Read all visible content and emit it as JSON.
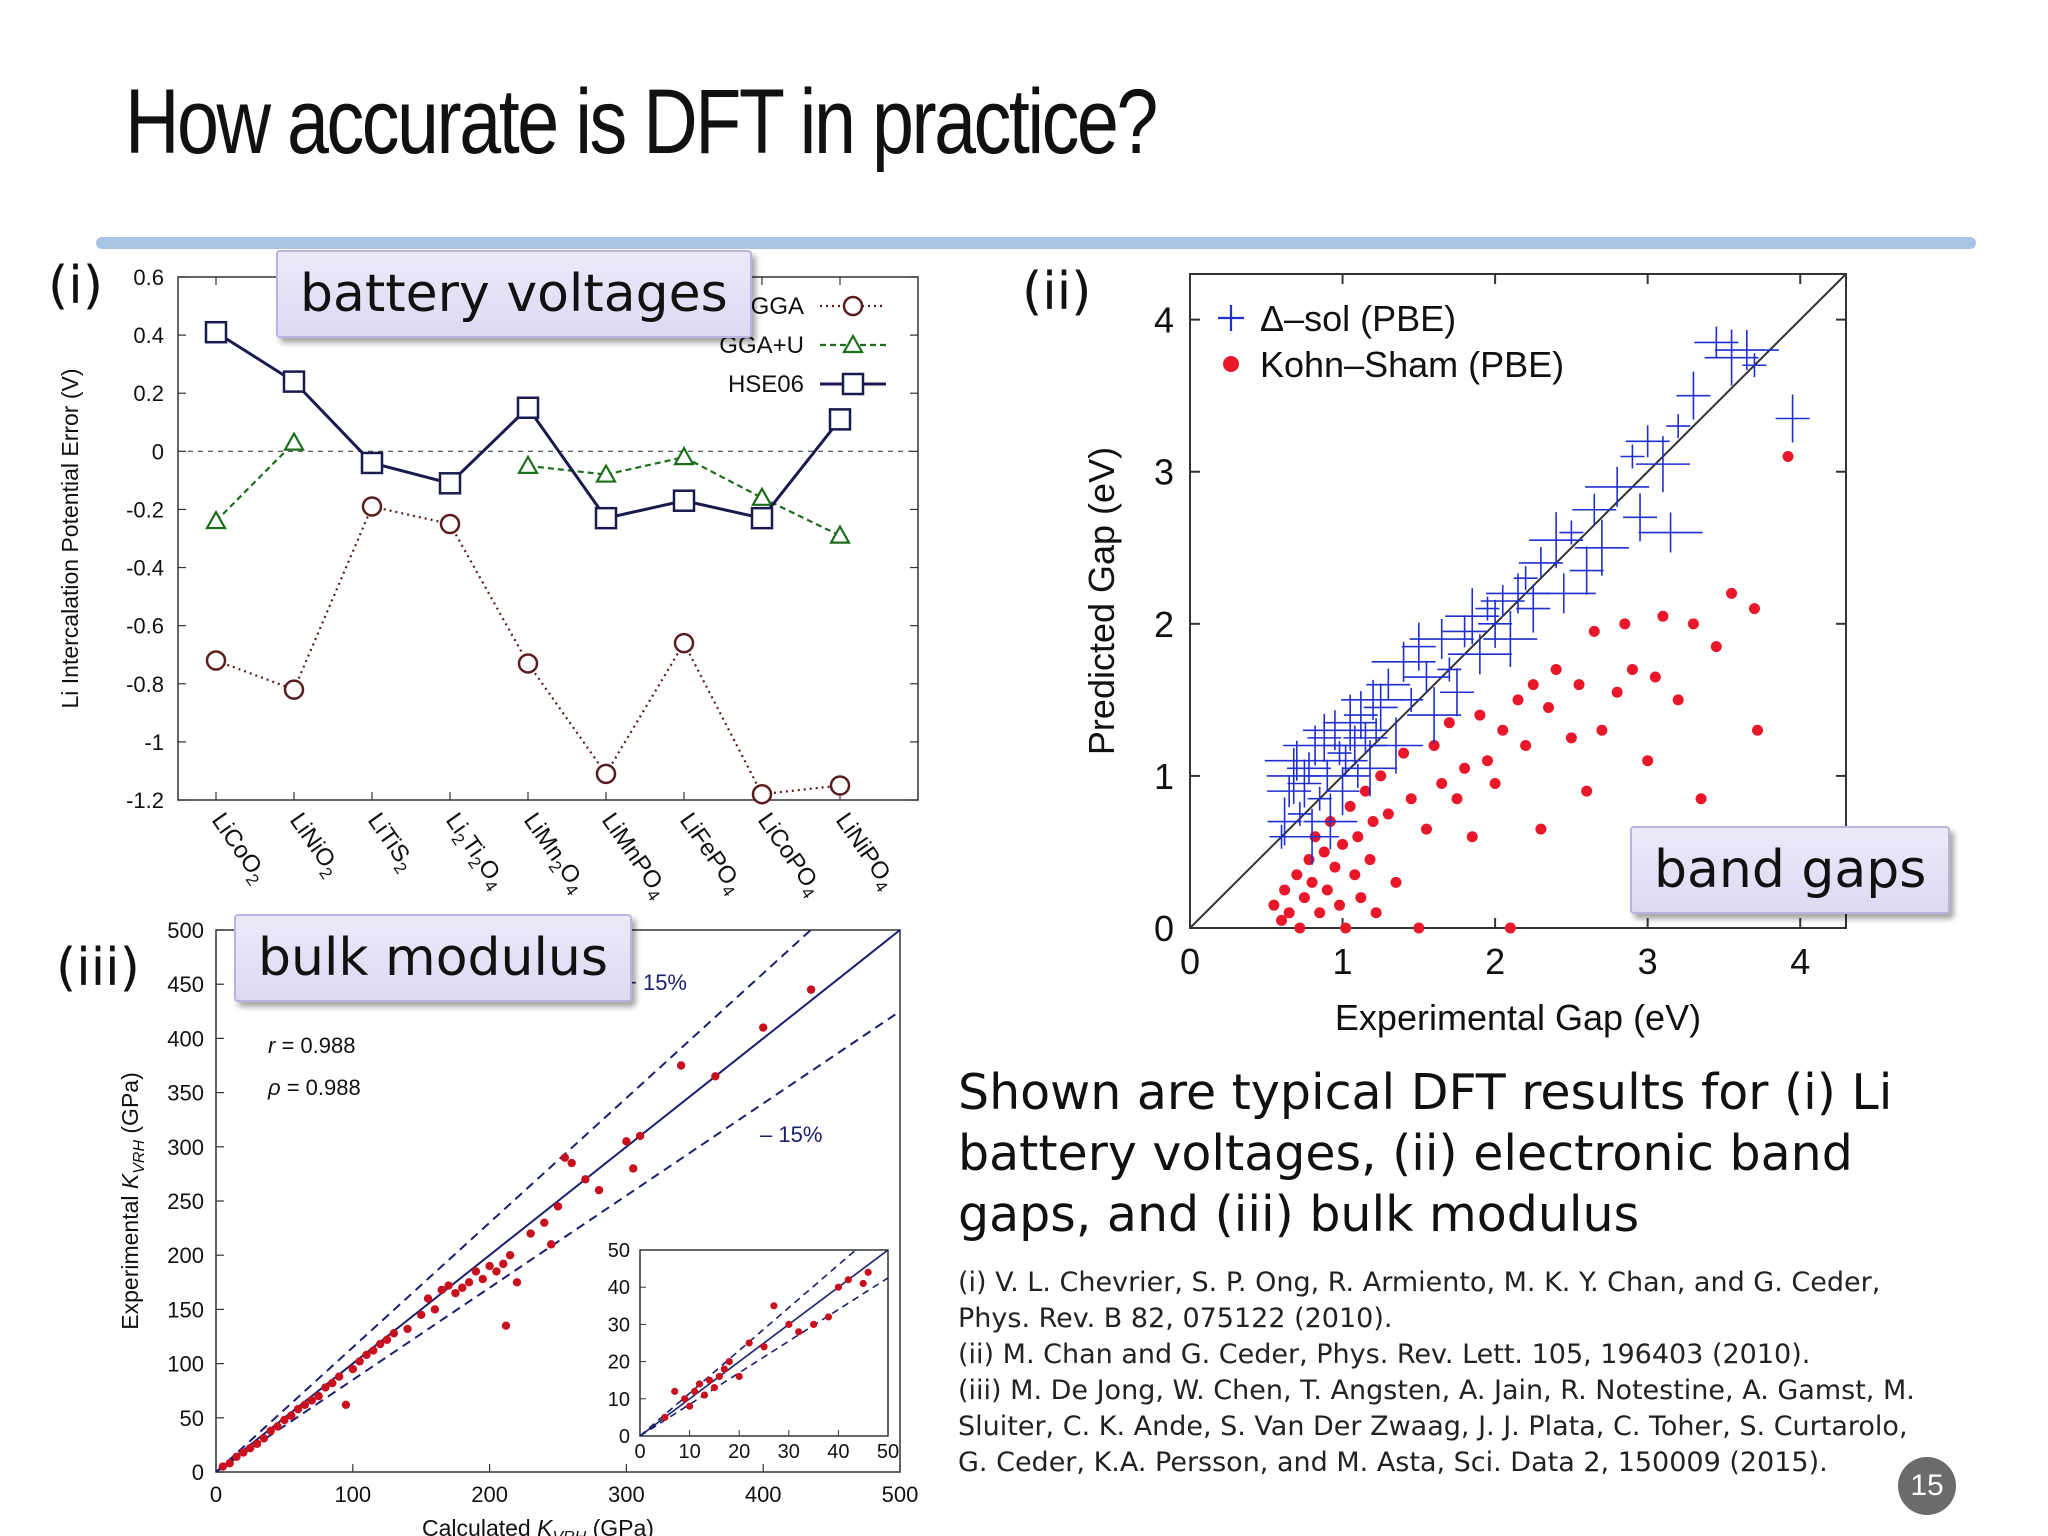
{
  "title": "How accurate is DFT in practice?",
  "panels": {
    "i": {
      "label": "(i)",
      "callout": "battery voltages"
    },
    "ii": {
      "label": "(ii)",
      "callout": "band gaps"
    },
    "iii": {
      "label": "(iii)",
      "callout": "bulk modulus"
    }
  },
  "summary": "Shown are typical DFT results for (i) Li battery voltages, (ii) electronic band gaps, and (iii) bulk modulus",
  "references": [
    "(i) V. L. Chevrier, S. P. Ong, R. Armiento, M. K. Y. Chan, and G. Ceder, Phys. Rev. B 82, 075122 (2010).",
    "(ii) M. Chan and G. Ceder, Phys. Rev. Lett. 105, 196403 (2010).",
    "(iii) M. De Jong, W. Chen, T. Angsten, A. Jain, R. Notestine, A. Gamst, M. Sluiter, C. K. Ande, S. Van Der Zwaag, J. J. Plata, C. Toher, S. Curtarolo, G. Ceder, K.A. Persson, and M. Asta, Sci. Data 2, 150009 (2015)."
  ],
  "page_number": "15",
  "chart_data": [
    {
      "id": "voltages",
      "type": "line",
      "ylabel": "Li Intercalation Potential Error (V)",
      "ylim": [
        -1.2,
        0.6
      ],
      "yticks": [
        "0.6",
        "0.4",
        "0.2",
        "0",
        "-0.2",
        "-0.4",
        "-0.6",
        "-0.8",
        "-1",
        "-1.2"
      ],
      "categories": [
        {
          "base": "LiCoO",
          "sub": "2"
        },
        {
          "base": "LiNiO",
          "sub": "2"
        },
        {
          "base": "LiTiS",
          "sub": "2"
        },
        {
          "parts": [
            [
              "Li",
              ""
            ],
            [
              "2",
              "sub"
            ],
            [
              "Ti",
              ""
            ],
            [
              "2",
              "sub"
            ],
            [
              "O",
              ""
            ],
            [
              "4",
              "sub"
            ]
          ]
        },
        {
          "base": "LiMn",
          "sub": "2",
          "tail": "O",
          "sub2": "4"
        },
        {
          "base": "LiMnPO",
          "sub": "4"
        },
        {
          "base": "LiFePO",
          "sub": "4"
        },
        {
          "base": "LiCoPO",
          "sub": "4"
        },
        {
          "base": "LiNiPO",
          "sub": "4"
        }
      ],
      "legend_position": "top-right",
      "series": [
        {
          "name": "GGA",
          "marker": "circle",
          "color": "#5a1c1c",
          "dash": "dotted",
          "values": [
            -0.72,
            -0.82,
            -0.19,
            -0.25,
            -0.73,
            -1.11,
            -0.66,
            -1.18,
            -1.15
          ]
        },
        {
          "name": "GGA+U",
          "marker": "triangle",
          "color": "#1c6e1c",
          "dash": "dashed",
          "values": [
            -0.24,
            0.03,
            null,
            null,
            -0.05,
            -0.08,
            -0.02,
            -0.16,
            -0.29
          ]
        },
        {
          "name": "HSE06",
          "marker": "square",
          "color": "#1a1a4e",
          "dash": "solid",
          "values": [
            0.41,
            0.24,
            -0.04,
            -0.11,
            0.15,
            -0.23,
            -0.17,
            -0.23,
            0.11
          ]
        }
      ],
      "reference_line": 0
    },
    {
      "id": "bandgaps",
      "type": "scatter",
      "xlabel": "Experimental Gap (eV)",
      "ylabel": "Predicted Gap (eV)",
      "xlim": [
        0,
        4.3
      ],
      "ylim": [
        0,
        4.3
      ],
      "xticks": [
        "0",
        "1",
        "2",
        "3",
        "4"
      ],
      "yticks": [
        "0",
        "1",
        "2",
        "3",
        "4"
      ],
      "legend_position": "top-left",
      "series": [
        {
          "name": "Δ–sol (PBE)",
          "marker": "cross",
          "color": "#1f2fd0",
          "points": [
            [
              0.6,
              0.6
            ],
            [
              0.62,
              0.7
            ],
            [
              0.65,
              0.9
            ],
            [
              0.68,
              1.0
            ],
            [
              0.7,
              1.1
            ],
            [
              0.72,
              0.75
            ],
            [
              0.75,
              0.95
            ],
            [
              0.78,
              1.05
            ],
            [
              0.8,
              0.6
            ],
            [
              0.82,
              1.2
            ],
            [
              0.85,
              0.85
            ],
            [
              0.88,
              1.25
            ],
            [
              0.9,
              1.0
            ],
            [
              0.92,
              0.7
            ],
            [
              0.95,
              1.3
            ],
            [
              0.98,
              1.15
            ],
            [
              1.0,
              0.9
            ],
            [
              1.02,
              1.1
            ],
            [
              1.05,
              1.35
            ],
            [
              1.08,
              1.2
            ],
            [
              1.1,
              1.0
            ],
            [
              1.12,
              1.4
            ],
            [
              1.15,
              1.25
            ],
            [
              1.18,
              1.05
            ],
            [
              1.2,
              1.5
            ],
            [
              1.22,
              1.3
            ],
            [
              1.25,
              1.45
            ],
            [
              1.3,
              1.6
            ],
            [
              1.35,
              1.2
            ],
            [
              1.4,
              1.75
            ],
            [
              1.45,
              1.5
            ],
            [
              1.5,
              1.85
            ],
            [
              1.55,
              1.65
            ],
            [
              1.6,
              1.4
            ],
            [
              1.65,
              1.9
            ],
            [
              1.7,
              1.7
            ],
            [
              1.75,
              1.55
            ],
            [
              1.8,
              1.95
            ],
            [
              1.85,
              2.05
            ],
            [
              1.9,
              1.8
            ],
            [
              1.95,
              2.1
            ],
            [
              2.0,
              2.0
            ],
            [
              2.05,
              2.15
            ],
            [
              2.1,
              1.9
            ],
            [
              2.15,
              2.2
            ],
            [
              2.2,
              2.3
            ],
            [
              2.25,
              2.1
            ],
            [
              2.3,
              2.4
            ],
            [
              2.4,
              2.55
            ],
            [
              2.45,
              2.2
            ],
            [
              2.5,
              2.6
            ],
            [
              2.6,
              2.35
            ],
            [
              2.65,
              2.75
            ],
            [
              2.7,
              2.5
            ],
            [
              2.8,
              2.9
            ],
            [
              2.9,
              3.1
            ],
            [
              2.95,
              2.7
            ],
            [
              3.0,
              3.2
            ],
            [
              3.1,
              3.05
            ],
            [
              3.15,
              2.6
            ],
            [
              3.2,
              3.3
            ],
            [
              3.3,
              3.5
            ],
            [
              3.45,
              3.85
            ],
            [
              3.55,
              3.75
            ],
            [
              3.65,
              3.8
            ],
            [
              3.7,
              3.7
            ],
            [
              3.95,
              3.35
            ]
          ]
        },
        {
          "name": "Kohn–Sham (PBE)",
          "marker": "dot",
          "color": "#e8182a",
          "points": [
            [
              0.55,
              0.15
            ],
            [
              0.6,
              0.05
            ],
            [
              0.62,
              0.25
            ],
            [
              0.65,
              0.1
            ],
            [
              0.7,
              0.35
            ],
            [
              0.72,
              0.0
            ],
            [
              0.75,
              0.2
            ],
            [
              0.78,
              0.45
            ],
            [
              0.8,
              0.3
            ],
            [
              0.82,
              0.6
            ],
            [
              0.85,
              0.1
            ],
            [
              0.88,
              0.5
            ],
            [
              0.9,
              0.25
            ],
            [
              0.92,
              0.7
            ],
            [
              0.95,
              0.4
            ],
            [
              0.98,
              0.15
            ],
            [
              1.0,
              0.55
            ],
            [
              1.02,
              0.0
            ],
            [
              1.05,
              0.8
            ],
            [
              1.08,
              0.35
            ],
            [
              1.1,
              0.6
            ],
            [
              1.12,
              0.2
            ],
            [
              1.15,
              0.9
            ],
            [
              1.18,
              0.45
            ],
            [
              1.2,
              0.7
            ],
            [
              1.22,
              0.1
            ],
            [
              1.25,
              1.0
            ],
            [
              1.3,
              0.75
            ],
            [
              1.35,
              0.3
            ],
            [
              1.4,
              1.15
            ],
            [
              1.45,
              0.85
            ],
            [
              1.5,
              0.0
            ],
            [
              1.55,
              0.65
            ],
            [
              1.6,
              1.2
            ],
            [
              1.65,
              0.95
            ],
            [
              1.7,
              1.35
            ],
            [
              1.75,
              0.85
            ],
            [
              1.8,
              1.05
            ],
            [
              1.85,
              0.6
            ],
            [
              1.9,
              1.4
            ],
            [
              1.95,
              1.1
            ],
            [
              2.0,
              0.95
            ],
            [
              2.05,
              1.3
            ],
            [
              2.1,
              0.0
            ],
            [
              2.15,
              1.5
            ],
            [
              2.2,
              1.2
            ],
            [
              2.25,
              1.6
            ],
            [
              2.3,
              0.65
            ],
            [
              2.35,
              1.45
            ],
            [
              2.4,
              1.7
            ],
            [
              2.5,
              1.25
            ],
            [
              2.55,
              1.6
            ],
            [
              2.6,
              0.9
            ],
            [
              2.65,
              1.95
            ],
            [
              2.7,
              1.3
            ],
            [
              2.8,
              1.55
            ],
            [
              2.85,
              2.0
            ],
            [
              2.9,
              1.7
            ],
            [
              3.0,
              1.1
            ],
            [
              3.05,
              1.65
            ],
            [
              3.1,
              2.05
            ],
            [
              3.2,
              1.5
            ],
            [
              3.3,
              2.0
            ],
            [
              3.35,
              0.85
            ],
            [
              3.45,
              1.85
            ],
            [
              3.55,
              2.2
            ],
            [
              3.7,
              2.1
            ],
            [
              3.72,
              1.3
            ],
            [
              3.92,
              3.1
            ]
          ]
        }
      ],
      "reference_line": "y=x"
    },
    {
      "id": "bulk_modulus",
      "type": "scatter",
      "xlim": [
        0,
        500
      ],
      "ylim": [
        0,
        500
      ],
      "xticks": [
        "0",
        "100",
        "200",
        "300",
        "400",
        "500"
      ],
      "yticks": [
        "0",
        "50",
        "100",
        "150",
        "200",
        "250",
        "300",
        "350",
        "400",
        "450",
        "500"
      ],
      "annotations": {
        "plus": "+ 15%",
        "minus": "– 15%",
        "r": "= 0.988",
        "rho": "= 0.988"
      },
      "series": [
        {
          "name": "",
          "marker": "dot",
          "color": "#c8101e",
          "points": [
            [
              5,
              5
            ],
            [
              10,
              8
            ],
            [
              15,
              14
            ],
            [
              20,
              18
            ],
            [
              25,
              22
            ],
            [
              30,
              26
            ],
            [
              35,
              31
            ],
            [
              40,
              38
            ],
            [
              45,
              42
            ],
            [
              50,
              48
            ],
            [
              55,
              52
            ],
            [
              60,
              58
            ],
            [
              65,
              62
            ],
            [
              70,
              66
            ],
            [
              75,
              70
            ],
            [
              80,
              78
            ],
            [
              85,
              82
            ],
            [
              90,
              88
            ],
            [
              95,
              62
            ],
            [
              100,
              95
            ],
            [
              105,
              102
            ],
            [
              110,
              108
            ],
            [
              115,
              112
            ],
            [
              120,
              118
            ],
            [
              125,
              122
            ],
            [
              130,
              128
            ],
            [
              140,
              132
            ],
            [
              150,
              145
            ],
            [
              155,
              160
            ],
            [
              160,
              150
            ],
            [
              165,
              168
            ],
            [
              170,
              172
            ],
            [
              175,
              165
            ],
            [
              180,
              170
            ],
            [
              185,
              175
            ],
            [
              190,
              185
            ],
            [
              195,
              178
            ],
            [
              200,
              190
            ],
            [
              205,
              185
            ],
            [
              210,
              192
            ],
            [
              212,
              135
            ],
            [
              215,
              200
            ],
            [
              220,
              175
            ],
            [
              230,
              220
            ],
            [
              240,
              230
            ],
            [
              245,
              210
            ],
            [
              250,
              245
            ],
            [
              255,
              290
            ],
            [
              260,
              285
            ],
            [
              270,
              270
            ],
            [
              280,
              260
            ],
            [
              300,
              305
            ],
            [
              305,
              280
            ],
            [
              310,
              310
            ],
            [
              340,
              375
            ],
            [
              365,
              365
            ],
            [
              400,
              410
            ],
            [
              435,
              445
            ]
          ]
        }
      ],
      "inset": {
        "xlim": [
          0,
          50
        ],
        "ylim": [
          0,
          50
        ],
        "xticks": [
          "0",
          "10",
          "20",
          "30",
          "40",
          "50"
        ],
        "yticks": [
          "0",
          "10",
          "20",
          "30",
          "40",
          "50"
        ],
        "points": [
          [
            5,
            5
          ],
          [
            7,
            12
          ],
          [
            9,
            10
          ],
          [
            10,
            8
          ],
          [
            11,
            12
          ],
          [
            12,
            14
          ],
          [
            13,
            11
          ],
          [
            14,
            15
          ],
          [
            15,
            13
          ],
          [
            16,
            16
          ],
          [
            17,
            18
          ],
          [
            18,
            20
          ],
          [
            20,
            16
          ],
          [
            22,
            25
          ],
          [
            25,
            24
          ],
          [
            27,
            35
          ],
          [
            30,
            30
          ],
          [
            32,
            28
          ],
          [
            35,
            30
          ],
          [
            38,
            32
          ],
          [
            40,
            40
          ],
          [
            42,
            42
          ],
          [
            45,
            41
          ],
          [
            46,
            44
          ]
        ]
      }
    }
  ]
}
